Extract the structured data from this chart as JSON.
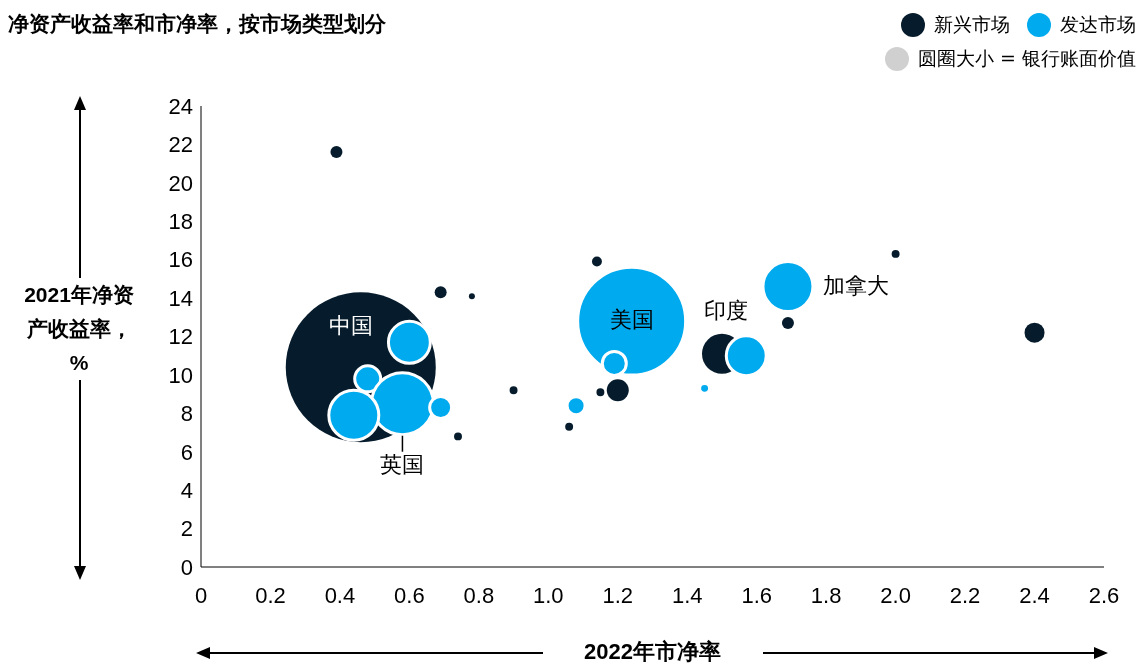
{
  "chart_data": {
    "type": "bubble",
    "title": "净资产收益率和市净率，按市场类型划分",
    "xlabel": "2022年市净率",
    "ylabel": "2021年净资产收益率，%",
    "legend": "top right",
    "relative": false,
    "xlim": [
      0,
      2.6
    ],
    "xticks": [
      0,
      0.2,
      0.4,
      0.6,
      0.8,
      {
        "value": 1,
        "label": "1.0"
      },
      1.2,
      1.4,
      1.6,
      1.8,
      {
        "value": 2,
        "label": "2.0"
      },
      2.2,
      2.4,
      2.6
    ],
    "ylim": [
      0,
      24
    ],
    "yticks": [
      0,
      2,
      4,
      6,
      8,
      10,
      12,
      14,
      16,
      18,
      20,
      22,
      24
    ],
    "series": [
      {
        "name": "新兴市场",
        "color": "#061c2c",
        "x": [
          0.39,
          0.46,
          0.69,
          0.78,
          0.74,
          0.9,
          1.06,
          1.14,
          1.15,
          1.2,
          1.5,
          1.69,
          2.0,
          2.4
        ],
        "values": [
          21.6,
          10.4,
          14.3,
          14.1,
          6.8,
          9.2,
          7.3,
          15.9,
          9.1,
          9.2,
          11.1,
          12.7,
          16.3,
          12.2
        ],
        "sizes": [
          0.0064,
          1,
          0.0064,
          0.0016,
          0.0028,
          0.0028,
          0.0028,
          0.0044,
          0.0028,
          0.0215,
          0.071,
          0.0064,
          0.0028,
          0.0178
        ]
      },
      {
        "name": "发达市场",
        "color": "#00aaee",
        "x": [
          0.6,
          0.48,
          0.58,
          0.44,
          0.69,
          1.24,
          1.19,
          1.08,
          1.45,
          1.57,
          1.69
        ],
        "values": [
          11.7,
          9.8,
          8.5,
          7.9,
          8.3,
          12.8,
          10.6,
          8.4,
          9.3,
          11.0,
          14.6
        ],
        "sizes": [
          0.078,
          0.03,
          0.171,
          0.111,
          0.0215,
          0.518,
          0.0256,
          0.0144,
          0.0044,
          0.071,
          0.111
        ]
      }
    ],
    "annotations": [
      "圆圈大小 = 银行账面价值",
      {
        "text": "中国",
        "x": 0.46,
        "y": 10.4
      },
      {
        "text": "英国",
        "x": 0.58,
        "y": 8.5
      },
      {
        "text": "美国",
        "x": 1.24,
        "y": 12.8
      },
      {
        "text": "印度",
        "x": 1.5,
        "y": 11.1
      },
      {
        "text": "加拿大",
        "x": 1.69,
        "y": 14.6
      }
    ]
  }
}
